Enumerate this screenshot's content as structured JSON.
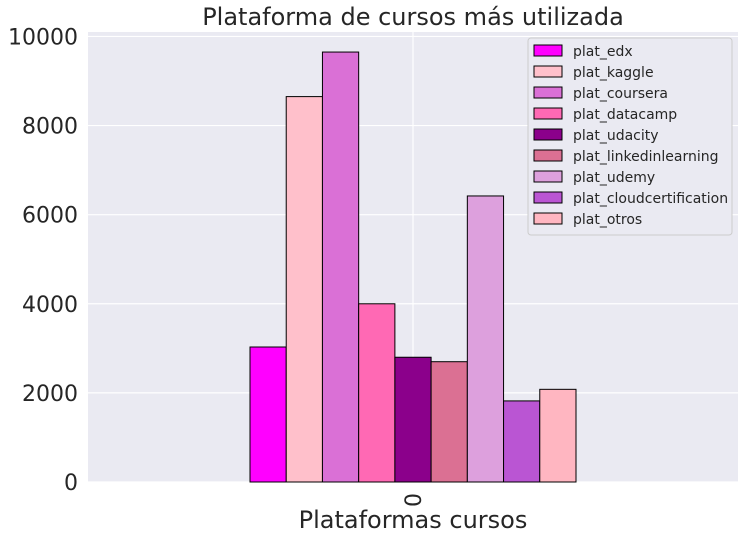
{
  "chart_data": {
    "type": "bar",
    "title": "Plataforma de cursos más utilizada",
    "xlabel": "Plataformas cursos",
    "ylabel": "",
    "categories": [
      "0"
    ],
    "ylim": [
      0,
      10100
    ],
    "yticks": [
      0,
      2000,
      4000,
      6000,
      8000,
      10000
    ],
    "grid": true,
    "legend_position": "top-right",
    "series": [
      {
        "name": "plat_edx",
        "values": [
          3030
        ],
        "color": "#ff00ff"
      },
      {
        "name": "plat_kaggle",
        "values": [
          8650
        ],
        "color": "#ffc0cb"
      },
      {
        "name": "plat_coursera",
        "values": [
          9650
        ],
        "color": "#da70d6"
      },
      {
        "name": "plat_datacamp",
        "values": [
          4000
        ],
        "color": "#ff69b4"
      },
      {
        "name": "plat_udacity",
        "values": [
          2800
        ],
        "color": "#8b008b"
      },
      {
        "name": "plat_linkedinlearning",
        "values": [
          2700
        ],
        "color": "#db7093"
      },
      {
        "name": "plat_udemy",
        "values": [
          6420
        ],
        "color": "#dda0dd"
      },
      {
        "name": "plat_cloudcertification",
        "values": [
          1820
        ],
        "color": "#ba55d3"
      },
      {
        "name": "plat_otros",
        "values": [
          2080
        ],
        "color": "#ffb6c1"
      }
    ]
  }
}
